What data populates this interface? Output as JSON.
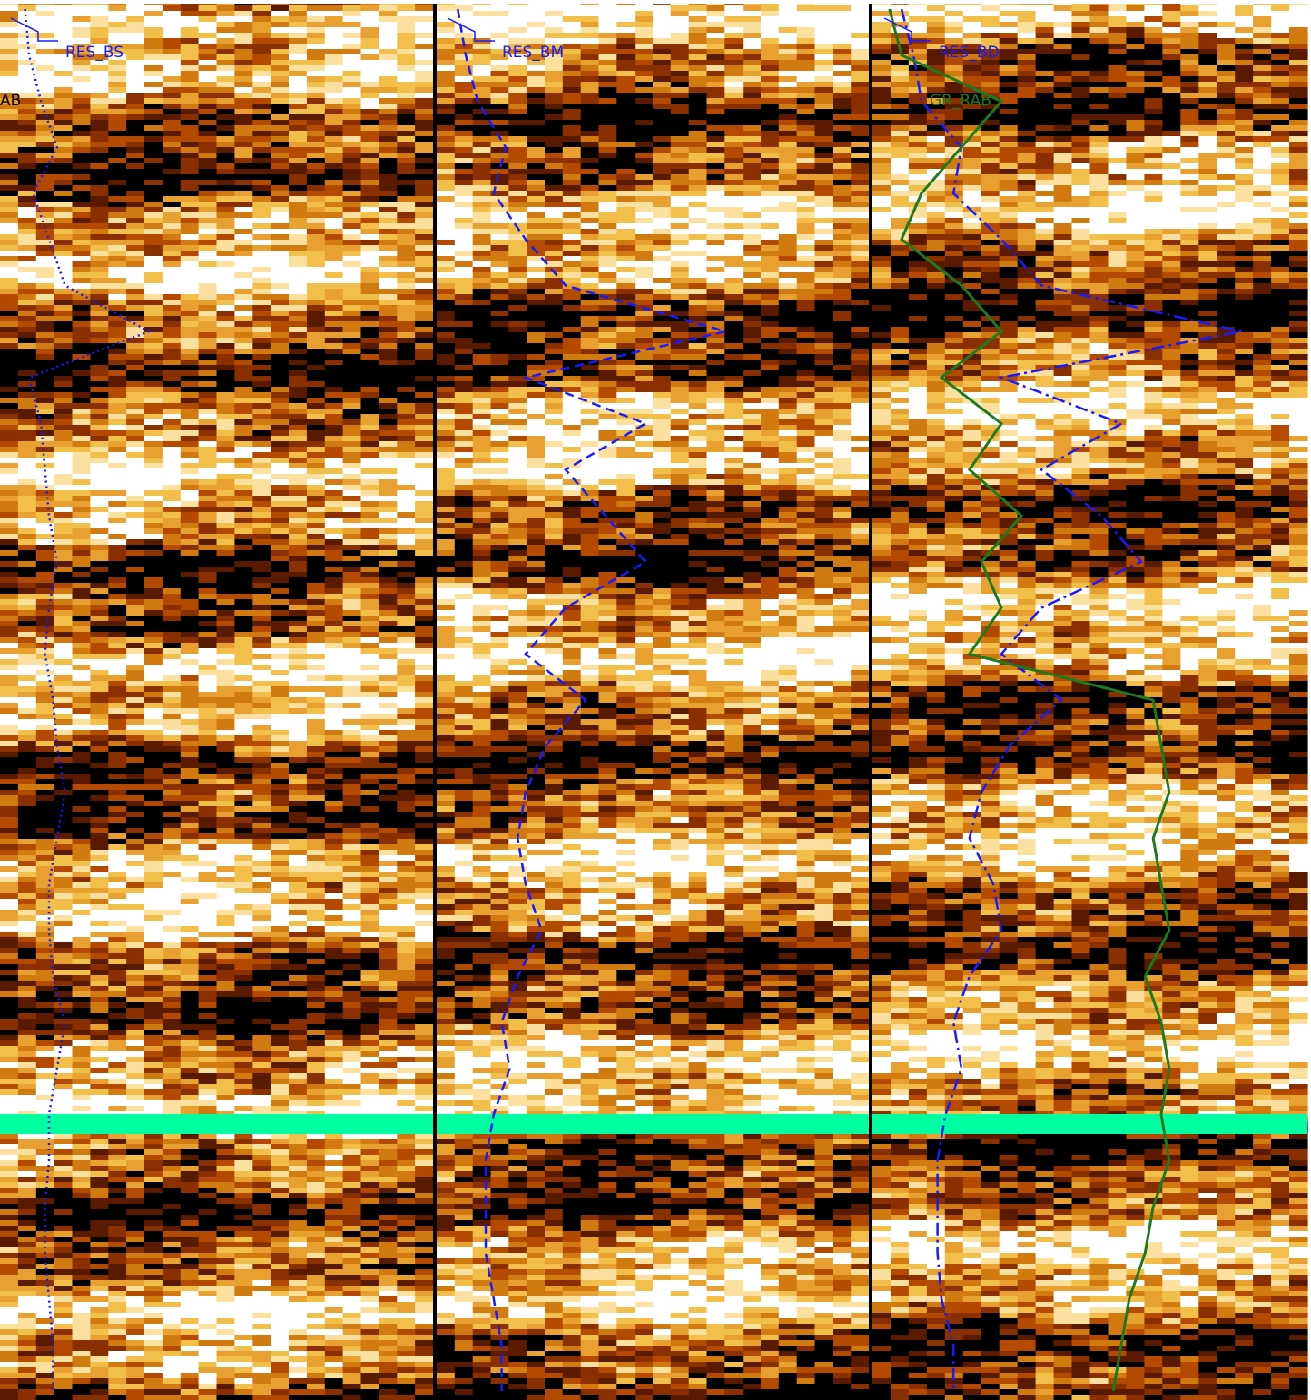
{
  "chart_data": {
    "type": "line",
    "title": "",
    "tracks": [
      {
        "name": "track-1",
        "image": "resistivity-image",
        "series": [
          {
            "name": "RES_BS",
            "style": "dotted",
            "color": "#1a1aff"
          }
        ]
      },
      {
        "name": "track-2",
        "image": "resistivity-image",
        "series": [
          {
            "name": "RES_BM",
            "style": "dashed",
            "color": "#1a1aff"
          }
        ]
      },
      {
        "name": "track-3",
        "image": "resistivity-image",
        "series": [
          {
            "name": "RES_BD",
            "style": "dash-dot",
            "color": "#1a1aff"
          },
          {
            "name": "GR_RAB",
            "style": "solid",
            "color": "#1e7a1e"
          }
        ]
      }
    ],
    "labels": {
      "res_bs": "RES_BS",
      "res_bm": "RES_BM",
      "res_bd": "RES_BD",
      "gr_rab": "GR_RAB",
      "edge_fragment": "AB"
    },
    "note_marker": {
      "description": "horizontal highlight band",
      "color": "#00ffa0"
    },
    "colors": {
      "image_dark": "#000000",
      "image_mid": "#b34a00",
      "image_light": "#f2c04a",
      "image_white": "#ffffff",
      "res": "#1a1aff",
      "gr": "#1e7a1e",
      "band": "#00ffa0"
    },
    "depth_index": [
      0,
      1,
      2,
      3,
      4,
      5,
      6,
      7,
      8,
      9,
      10,
      11,
      12,
      13,
      14,
      15,
      16,
      17,
      18,
      19,
      20,
      21,
      22,
      23,
      24,
      25,
      26,
      27,
      28,
      29,
      30
    ],
    "res_bs_values": [
      0.04,
      0.05,
      0.08,
      0.12,
      0.06,
      0.1,
      0.14,
      0.35,
      0.05,
      0.08,
      0.09,
      0.1,
      0.12,
      0.1,
      0.09,
      0.11,
      0.12,
      0.14,
      0.12,
      0.1,
      0.1,
      0.11,
      0.14,
      0.12,
      0.1,
      0.1,
      0.09,
      0.09,
      0.1,
      0.11,
      0.11
    ],
    "res_bm_values": [
      0.03,
      0.05,
      0.08,
      0.15,
      0.12,
      0.2,
      0.3,
      0.7,
      0.2,
      0.5,
      0.3,
      0.4,
      0.5,
      0.3,
      0.2,
      0.35,
      0.25,
      0.2,
      0.18,
      0.2,
      0.24,
      0.18,
      0.14,
      0.16,
      0.12,
      0.1,
      0.1,
      0.1,
      0.12,
      0.14,
      0.14
    ],
    "res_bd_values": [
      0.05,
      0.08,
      0.1,
      0.2,
      0.18,
      0.3,
      0.4,
      0.9,
      0.3,
      0.6,
      0.4,
      0.55,
      0.65,
      0.4,
      0.3,
      0.45,
      0.32,
      0.25,
      0.22,
      0.28,
      0.3,
      0.22,
      0.18,
      0.2,
      0.16,
      0.14,
      0.14,
      0.14,
      0.15,
      0.18,
      0.18
    ],
    "gr_rab_values": [
      0.02,
      0.05,
      0.3,
      0.2,
      0.1,
      0.05,
      0.2,
      0.3,
      0.15,
      0.3,
      0.22,
      0.35,
      0.25,
      0.3,
      0.22,
      0.68,
      0.7,
      0.72,
      0.68,
      0.7,
      0.72,
      0.66,
      0.7,
      0.72,
      0.7,
      0.72,
      0.68,
      0.66,
      0.62,
      0.6,
      0.58
    ]
  }
}
